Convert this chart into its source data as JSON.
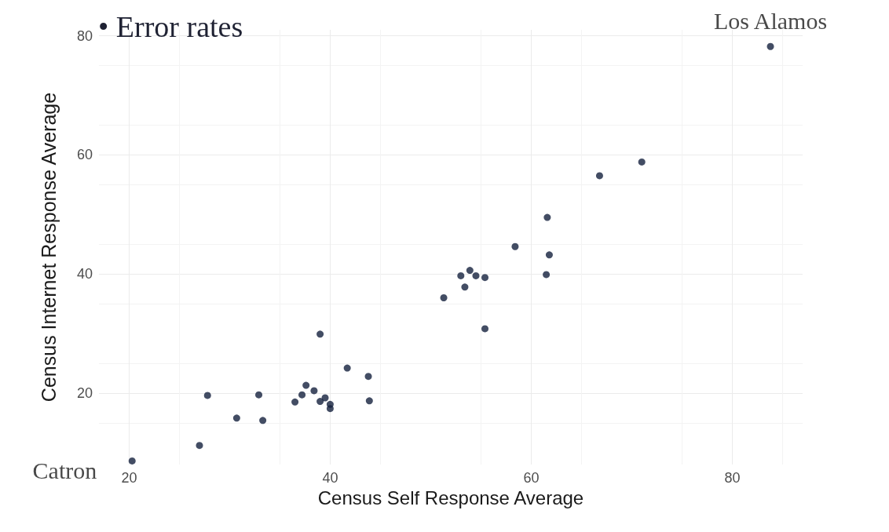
{
  "chart_data": {
    "type": "scatter",
    "title": "• Error rates",
    "xlabel": "Census Self Response Average",
    "ylabel": "Census Internet Response Average",
    "x": [
      20.3,
      27.0,
      27.8,
      30.7,
      32.9,
      33.3,
      36.5,
      37.2,
      37.6,
      38.4,
      39.0,
      39.0,
      39.5,
      40.0,
      40.0,
      41.7,
      43.8,
      43.9,
      51.3,
      53.0,
      53.4,
      53.9,
      54.5,
      55.4,
      55.4,
      58.4,
      61.6,
      61.5,
      61.8,
      66.8,
      71.0,
      83.8
    ],
    "values": [
      8.6,
      11.2,
      19.6,
      15.8,
      19.7,
      15.4,
      18.5,
      19.7,
      21.3,
      20.4,
      18.6,
      29.9,
      19.2,
      18.1,
      17.4,
      24.2,
      22.8,
      18.7,
      36.0,
      39.7,
      37.8,
      40.6,
      39.7,
      39.4,
      30.8,
      44.6,
      49.5,
      39.9,
      43.2,
      56.5,
      58.8,
      78.2
    ],
    "color": "#14213d",
    "marker": "circle",
    "xlim": [
      17,
      87
    ],
    "ylim": [
      8,
      81
    ],
    "xticks": [
      20,
      40,
      60,
      80
    ],
    "yticks": [
      20,
      40,
      60,
      80
    ],
    "grid": true,
    "annotations": [
      {
        "text": "Los Alamos",
        "x": 83.8,
        "y": 78.2
      },
      {
        "text": "Catron",
        "x": 20.3,
        "y": 8.6
      }
    ]
  }
}
